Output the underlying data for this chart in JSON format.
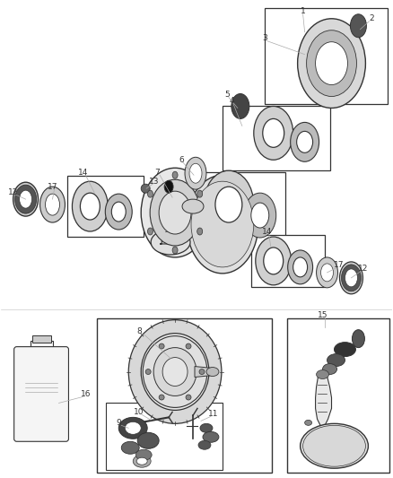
{
  "bg_color": "#ffffff",
  "fig_width": 4.38,
  "fig_height": 5.33,
  "dpi": 100,
  "gray": "#555555",
  "dgray": "#333333",
  "lgray": "#aaaaaa",
  "black": "#111111"
}
